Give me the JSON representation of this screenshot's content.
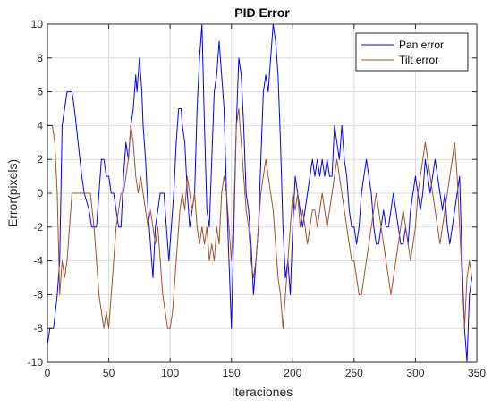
{
  "chart_data": {
    "type": "line",
    "title": "PID Error",
    "xlabel": "Iteraciones",
    "ylabel": "Error(pixels)",
    "xlim": [
      0,
      350
    ],
    "ylim": [
      -10,
      10
    ],
    "xticks": [
      0,
      50,
      100,
      150,
      200,
      250,
      300,
      350
    ],
    "yticks": [
      -10,
      -8,
      -6,
      -4,
      -2,
      0,
      2,
      4,
      6,
      8,
      10
    ],
    "grid": true,
    "legend_position": "top-right",
    "series": [
      {
        "name": "Pan error",
        "color": "#0000ff",
        "points": [
          [
            0,
            -9
          ],
          [
            2,
            -8
          ],
          [
            5,
            -8
          ],
          [
            8,
            -6
          ],
          [
            10,
            -4
          ],
          [
            12,
            4
          ],
          [
            14,
            5
          ],
          [
            16,
            6
          ],
          [
            20,
            6
          ],
          [
            22,
            5
          ],
          [
            25,
            3
          ],
          [
            28,
            1
          ],
          [
            30,
            0
          ],
          [
            34,
            -1
          ],
          [
            36,
            -2
          ],
          [
            40,
            -2
          ],
          [
            42,
            0
          ],
          [
            44,
            2
          ],
          [
            46,
            2
          ],
          [
            48,
            1
          ],
          [
            50,
            1
          ],
          [
            52,
            0
          ],
          [
            54,
            0
          ],
          [
            56,
            -1
          ],
          [
            58,
            -2
          ],
          [
            60,
            -2
          ],
          [
            62,
            1
          ],
          [
            64,
            3
          ],
          [
            66,
            2
          ],
          [
            68,
            4
          ],
          [
            70,
            5
          ],
          [
            72,
            7
          ],
          [
            73,
            6
          ],
          [
            75,
            8
          ],
          [
            77,
            6
          ],
          [
            78,
            4
          ],
          [
            80,
            2
          ],
          [
            82,
            -1
          ],
          [
            84,
            -3
          ],
          [
            86,
            -5
          ],
          [
            88,
            -2
          ],
          [
            90,
            -1
          ],
          [
            92,
            0
          ],
          [
            95,
            0
          ],
          [
            97,
            -2
          ],
          [
            99,
            -4
          ],
          [
            101,
            -2
          ],
          [
            103,
            0
          ],
          [
            105,
            3
          ],
          [
            107,
            5
          ],
          [
            109,
            5
          ],
          [
            110,
            4
          ],
          [
            112,
            3
          ],
          [
            114,
            0
          ],
          [
            116,
            -2
          ],
          [
            118,
            -1
          ],
          [
            120,
            0
          ],
          [
            122,
            5
          ],
          [
            124,
            8
          ],
          [
            126,
            10
          ],
          [
            128,
            4
          ],
          [
            130,
            -1
          ],
          [
            132,
            -2
          ],
          [
            134,
            2
          ],
          [
            136,
            6
          ],
          [
            138,
            7
          ],
          [
            140,
            9
          ],
          [
            142,
            7
          ],
          [
            144,
            5
          ],
          [
            146,
            0
          ],
          [
            148,
            -4
          ],
          [
            150,
            -8
          ],
          [
            152,
            -2
          ],
          [
            154,
            4
          ],
          [
            156,
            8
          ],
          [
            158,
            7
          ],
          [
            160,
            4
          ],
          [
            162,
            0
          ],
          [
            164,
            -1
          ],
          [
            166,
            -3
          ],
          [
            168,
            -6
          ],
          [
            170,
            -4
          ],
          [
            172,
            -2
          ],
          [
            174,
            2
          ],
          [
            176,
            6
          ],
          [
            178,
            7
          ],
          [
            180,
            6
          ],
          [
            182,
            8
          ],
          [
            184,
            10
          ],
          [
            186,
            9
          ],
          [
            188,
            7
          ],
          [
            190,
            3
          ],
          [
            192,
            -2
          ],
          [
            194,
            -5
          ],
          [
            196,
            -4
          ],
          [
            198,
            -6
          ],
          [
            200,
            -2
          ],
          [
            202,
            1
          ],
          [
            204,
            0
          ],
          [
            206,
            -1
          ],
          [
            208,
            -2
          ],
          [
            210,
            -1
          ],
          [
            212,
            0
          ],
          [
            214,
            1
          ],
          [
            216,
            2
          ],
          [
            218,
            1
          ],
          [
            220,
            2
          ],
          [
            222,
            1
          ],
          [
            224,
            2
          ],
          [
            226,
            1
          ],
          [
            228,
            2
          ],
          [
            230,
            1
          ],
          [
            232,
            1
          ],
          [
            234,
            4
          ],
          [
            236,
            3
          ],
          [
            238,
            2
          ],
          [
            240,
            4
          ],
          [
            242,
            2
          ],
          [
            244,
            1
          ],
          [
            246,
            -1
          ],
          [
            248,
            -2
          ],
          [
            250,
            -2
          ],
          [
            252,
            -3
          ],
          [
            254,
            -2
          ],
          [
            256,
            0
          ],
          [
            258,
            1
          ],
          [
            260,
            2
          ],
          [
            262,
            1
          ],
          [
            264,
            0
          ],
          [
            266,
            -2
          ],
          [
            268,
            -3
          ],
          [
            270,
            -3
          ],
          [
            272,
            -2
          ],
          [
            274,
            -1
          ],
          [
            276,
            -2
          ],
          [
            278,
            -2
          ],
          [
            280,
            -1
          ],
          [
            282,
            0
          ],
          [
            284,
            -1
          ],
          [
            286,
            -2
          ],
          [
            288,
            -3
          ],
          [
            290,
            -3
          ],
          [
            292,
            -2
          ],
          [
            294,
            -3
          ],
          [
            296,
            -1
          ],
          [
            298,
            0
          ],
          [
            300,
            1
          ],
          [
            302,
            0
          ],
          [
            304,
            -1
          ],
          [
            306,
            0
          ],
          [
            308,
            2
          ],
          [
            310,
            1
          ],
          [
            312,
            0
          ],
          [
            314,
            1
          ],
          [
            316,
            2
          ],
          [
            318,
            1
          ],
          [
            320,
            0
          ],
          [
            322,
            -1
          ],
          [
            324,
            0
          ],
          [
            326,
            -2
          ],
          [
            328,
            -3
          ],
          [
            330,
            -2
          ],
          [
            332,
            -1
          ],
          [
            334,
            0
          ],
          [
            336,
            1
          ],
          [
            338,
            -4
          ],
          [
            340,
            -8
          ],
          [
            342,
            -10
          ],
          [
            344,
            -6
          ],
          [
            346,
            -5
          ]
        ]
      },
      {
        "name": "Tilt error",
        "color": "#a0522d",
        "points": [
          [
            0,
            4
          ],
          [
            2,
            4
          ],
          [
            4,
            4
          ],
          [
            6,
            3
          ],
          [
            8,
            0
          ],
          [
            10,
            -6
          ],
          [
            12,
            -4
          ],
          [
            14,
            -5
          ],
          [
            16,
            -4
          ],
          [
            18,
            -2
          ],
          [
            20,
            0
          ],
          [
            25,
            0
          ],
          [
            30,
            0
          ],
          [
            35,
            0
          ],
          [
            38,
            -2
          ],
          [
            40,
            -4
          ],
          [
            42,
            -6
          ],
          [
            44,
            -7
          ],
          [
            46,
            -8
          ],
          [
            48,
            -7
          ],
          [
            50,
            -8
          ],
          [
            52,
            -6
          ],
          [
            54,
            -4
          ],
          [
            56,
            -2
          ],
          [
            58,
            -1
          ],
          [
            60,
            0
          ],
          [
            62,
            0
          ],
          [
            64,
            1
          ],
          [
            66,
            2
          ],
          [
            68,
            4
          ],
          [
            70,
            3
          ],
          [
            72,
            1
          ],
          [
            74,
            0
          ],
          [
            76,
            1
          ],
          [
            78,
            0
          ],
          [
            80,
            -1
          ],
          [
            82,
            -2
          ],
          [
            84,
            -1
          ],
          [
            86,
            -2
          ],
          [
            88,
            -3
          ],
          [
            90,
            -2
          ],
          [
            92,
            -4
          ],
          [
            94,
            -6
          ],
          [
            96,
            -7
          ],
          [
            98,
            -8
          ],
          [
            100,
            -8
          ],
          [
            102,
            -7
          ],
          [
            104,
            -5
          ],
          [
            106,
            -3
          ],
          [
            108,
            -1
          ],
          [
            110,
            0
          ],
          [
            112,
            -1
          ],
          [
            114,
            1
          ],
          [
            116,
            0
          ],
          [
            118,
            -1
          ],
          [
            120,
            0
          ],
          [
            122,
            -2
          ],
          [
            124,
            -3
          ],
          [
            126,
            -2
          ],
          [
            128,
            -3
          ],
          [
            130,
            -2
          ],
          [
            132,
            -4
          ],
          [
            134,
            -3
          ],
          [
            136,
            -4
          ],
          [
            138,
            -2
          ],
          [
            140,
            -3
          ],
          [
            142,
            0
          ],
          [
            144,
            1
          ],
          [
            146,
            0
          ],
          [
            148,
            -2
          ],
          [
            150,
            -4
          ],
          [
            152,
            -1
          ],
          [
            154,
            4
          ],
          [
            156,
            5
          ],
          [
            158,
            3
          ],
          [
            160,
            1
          ],
          [
            162,
            -1
          ],
          [
            164,
            -2
          ],
          [
            166,
            -4
          ],
          [
            168,
            -5
          ],
          [
            170,
            -4
          ],
          [
            172,
            -2
          ],
          [
            174,
            0
          ],
          [
            176,
            1
          ],
          [
            178,
            2
          ],
          [
            180,
            1
          ],
          [
            182,
            0
          ],
          [
            184,
            -1
          ],
          [
            186,
            -3
          ],
          [
            188,
            -5
          ],
          [
            190,
            -6
          ],
          [
            192,
            -8
          ],
          [
            194,
            -6
          ],
          [
            196,
            -4
          ],
          [
            198,
            -2
          ],
          [
            200,
            0
          ],
          [
            202,
            -1
          ],
          [
            204,
            0
          ],
          [
            206,
            -2
          ],
          [
            208,
            -1
          ],
          [
            210,
            -2
          ],
          [
            212,
            -3
          ],
          [
            214,
            -2
          ],
          [
            216,
            -1
          ],
          [
            218,
            -1
          ],
          [
            220,
            -2
          ],
          [
            222,
            -1
          ],
          [
            224,
            0
          ],
          [
            226,
            -1
          ],
          [
            228,
            -2
          ],
          [
            230,
            -1
          ],
          [
            232,
            0
          ],
          [
            234,
            1
          ],
          [
            236,
            2
          ],
          [
            238,
            1
          ],
          [
            240,
            0
          ],
          [
            242,
            -1
          ],
          [
            244,
            -2
          ],
          [
            246,
            -3
          ],
          [
            248,
            -4
          ],
          [
            250,
            -4
          ],
          [
            252,
            -5
          ],
          [
            254,
            -6
          ],
          [
            256,
            -6
          ],
          [
            258,
            -5
          ],
          [
            260,
            -4
          ],
          [
            262,
            -3
          ],
          [
            264,
            -2
          ],
          [
            266,
            -1
          ],
          [
            268,
            0
          ],
          [
            270,
            -1
          ],
          [
            272,
            -2
          ],
          [
            274,
            -3
          ],
          [
            276,
            -4
          ],
          [
            278,
            -5
          ],
          [
            280,
            -6
          ],
          [
            282,
            -5
          ],
          [
            284,
            -4
          ],
          [
            286,
            -3
          ],
          [
            288,
            -2
          ],
          [
            290,
            -1
          ],
          [
            292,
            -2
          ],
          [
            294,
            -3
          ],
          [
            296,
            -4
          ],
          [
            298,
            -3
          ],
          [
            300,
            -2
          ],
          [
            302,
            0
          ],
          [
            304,
            1
          ],
          [
            306,
            2
          ],
          [
            308,
            3
          ],
          [
            310,
            2
          ],
          [
            312,
            1
          ],
          [
            314,
            0
          ],
          [
            316,
            -1
          ],
          [
            318,
            -2
          ],
          [
            320,
            -3
          ],
          [
            322,
            -2
          ],
          [
            324,
            -1
          ],
          [
            326,
            0
          ],
          [
            328,
            1
          ],
          [
            330,
            2
          ],
          [
            332,
            3
          ],
          [
            334,
            1
          ],
          [
            336,
            -2
          ],
          [
            338,
            -5
          ],
          [
            340,
            -8
          ],
          [
            342,
            -5
          ],
          [
            344,
            -4
          ],
          [
            346,
            -5
          ]
        ]
      }
    ]
  }
}
